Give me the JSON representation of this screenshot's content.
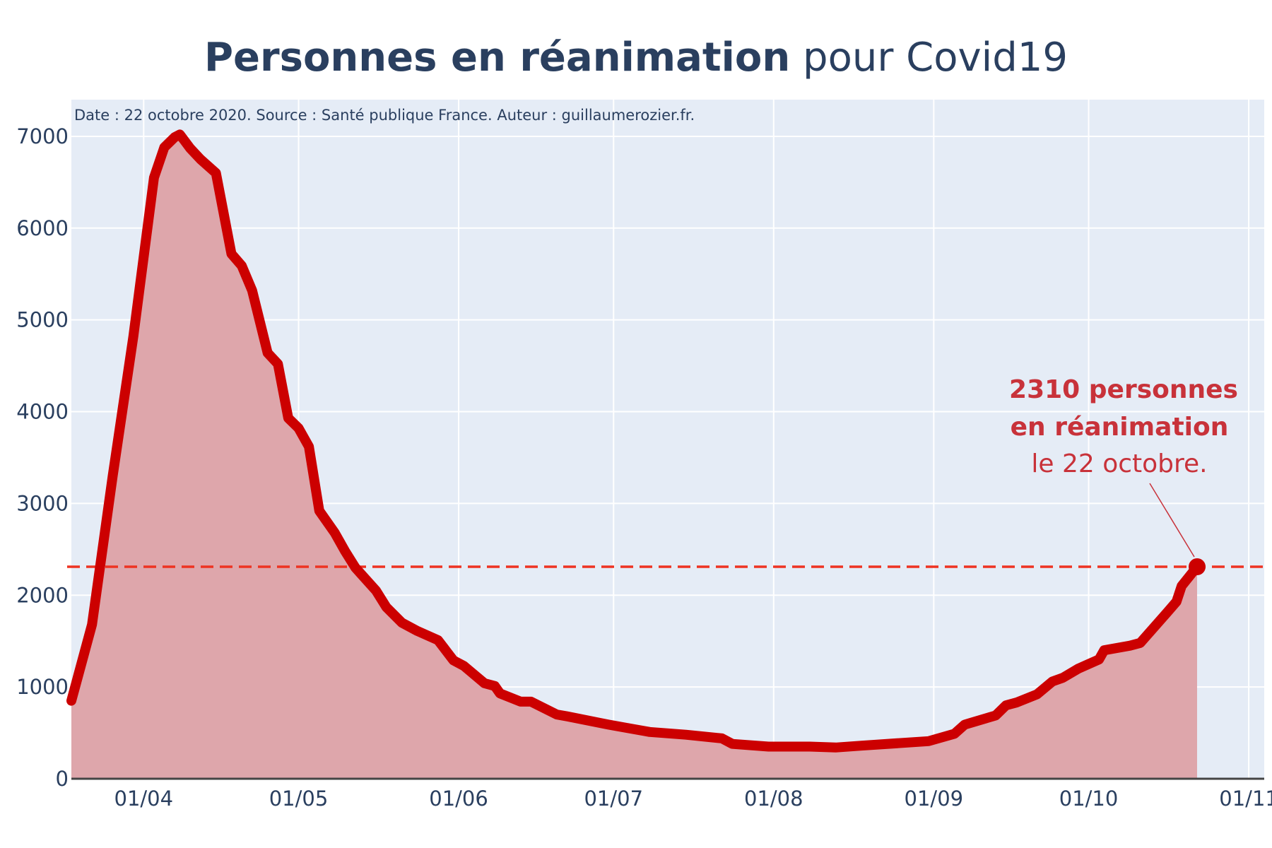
{
  "chart_data": {
    "type": "area",
    "title_bold": "Personnes en réanimation",
    "title_rest": " pour Covid19",
    "source_note": "Date : 22 octobre 2020. Source : Santé publique France. Auteur : guillaumerozier.fr.",
    "x_tick_labels": [
      "01/04",
      "01/05",
      "01/06",
      "01/07",
      "01/08",
      "01/09",
      "01/10",
      "01/11"
    ],
    "x_tick_dates": [
      "2020-04-01",
      "2020-05-01",
      "2020-06-01",
      "2020-07-01",
      "2020-08-01",
      "2020-09-01",
      "2020-10-01",
      "2020-11-01"
    ],
    "xlim": [
      "2020-03-18",
      "2020-11-04"
    ],
    "y_tick_labels": [
      "0",
      "1000",
      "2000",
      "3000",
      "4000",
      "5000",
      "6000",
      "7000"
    ],
    "y_tick_values": [
      0,
      1000,
      2000,
      3000,
      4000,
      5000,
      6000,
      7000
    ],
    "ylim": [
      0,
      7400
    ],
    "grid": true,
    "legend": "none",
    "line_color": "#cc0000",
    "fill_color": "#dea6ab",
    "plot_bg": "#e5ecf6",
    "reference_line": {
      "value": 2310,
      "color": "#ee3322",
      "style": "dashed"
    },
    "annotation": {
      "line1": "2310 personnes",
      "line2": "en réanimation",
      "line3": "le 22 octobre.",
      "date": "2020-10-22",
      "value": 2310,
      "color": "#c8323a"
    },
    "series": [
      {
        "x": [
          "2020-03-18",
          "2020-03-22",
          "2020-03-26",
          "2020-03-30",
          "2020-04-03",
          "2020-04-05",
          "2020-04-07",
          "2020-04-08",
          "2020-04-10",
          "2020-04-12",
          "2020-04-15",
          "2020-04-18",
          "2020-04-20",
          "2020-04-22",
          "2020-04-25",
          "2020-04-27",
          "2020-04-29",
          "2020-05-01",
          "2020-05-03",
          "2020-05-05",
          "2020-05-08",
          "2020-05-10",
          "2020-05-12",
          "2020-05-16",
          "2020-05-18",
          "2020-05-21",
          "2020-05-24",
          "2020-05-28",
          "2020-05-31",
          "2020-06-02",
          "2020-06-06",
          "2020-06-08",
          "2020-06-09",
          "2020-06-13",
          "2020-06-15",
          "2020-06-20",
          "2020-06-22",
          "2020-06-30",
          "2020-07-04",
          "2020-07-07",
          "2020-07-08",
          "2020-07-15",
          "2020-07-22",
          "2020-07-24",
          "2020-07-31",
          "2020-08-08",
          "2020-08-13",
          "2020-08-18",
          "2020-08-31",
          "2020-09-05",
          "2020-09-07",
          "2020-09-13",
          "2020-09-15",
          "2020-09-17",
          "2020-09-21",
          "2020-09-24",
          "2020-09-26",
          "2020-09-29",
          "2020-10-01",
          "2020-10-03",
          "2020-10-04",
          "2020-10-09",
          "2020-10-11",
          "2020-10-16",
          "2020-10-18",
          "2020-10-19",
          "2020-10-22"
        ],
        "y": [
          850,
          1680,
          3300,
          4820,
          6550,
          6880,
          6990,
          7020,
          6870,
          6750,
          6600,
          5720,
          5590,
          5320,
          4640,
          4520,
          3930,
          3820,
          3620,
          2920,
          2680,
          2480,
          2300,
          2050,
          1870,
          1700,
          1610,
          1510,
          1290,
          1230,
          1040,
          1010,
          930,
          840,
          840,
          700,
          680,
          590,
          550,
          520,
          510,
          480,
          440,
          380,
          350,
          350,
          340,
          360,
          410,
          490,
          590,
          690,
          800,
          830,
          920,
          1060,
          1100,
          1200,
          1250,
          1300,
          1400,
          1450,
          1480,
          1800,
          1930,
          2100,
          2310
        ]
      }
    ]
  }
}
